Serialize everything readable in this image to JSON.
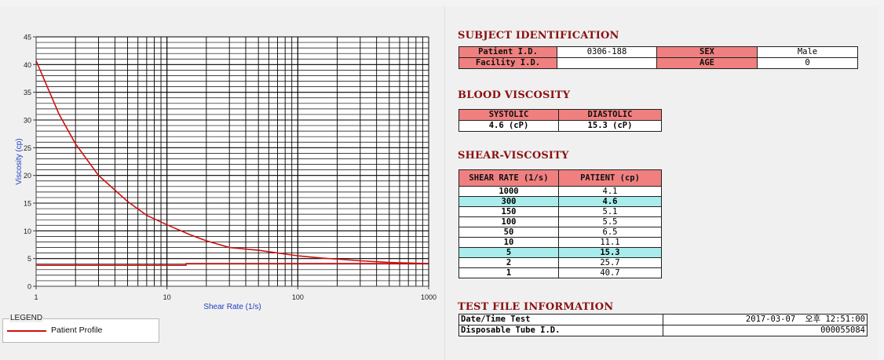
{
  "chart_data": {
    "type": "line",
    "title": "",
    "xlabel": "Shear Rate (1/s)",
    "ylabel": "Viscosity (cp)",
    "xscale": "log",
    "xlim": [
      1,
      1000
    ],
    "ylim": [
      0,
      45
    ],
    "xticks": [
      "1",
      "10",
      "100",
      "1000"
    ],
    "yticks": [
      "0",
      "5",
      "10",
      "15",
      "20",
      "25",
      "30",
      "35",
      "40",
      "45"
    ],
    "grid": true,
    "legend_position": "bottom-left",
    "series": [
      {
        "name": "Patient Profile",
        "color": "#d01010",
        "x": [
          1,
          1.5,
          2,
          3,
          5,
          7,
          10,
          15,
          20,
          30,
          50,
          70,
          100,
          150,
          200,
          300,
          500,
          700,
          1000
        ],
        "y": [
          40.7,
          31.0,
          25.7,
          20.0,
          15.3,
          12.8,
          11.1,
          9.3,
          8.2,
          7.0,
          6.5,
          6.0,
          5.5,
          5.1,
          4.9,
          4.6,
          4.3,
          4.2,
          4.1
        ]
      },
      {
        "name": "",
        "color": "#d01010",
        "x": [
          1,
          14,
          14,
          1000
        ],
        "y": [
          3.8,
          3.8,
          4.1,
          4.1
        ]
      }
    ]
  },
  "legend": {
    "title": "LEGEND",
    "items": [
      "Patient Profile"
    ]
  },
  "subject": {
    "title": "SUBJECT IDENTIFICATION",
    "patient_id_label": "Patient I.D.",
    "patient_id": "0306-188",
    "sex_label": "SEX",
    "sex": "Male",
    "facility_id_label": "Facility I.D.",
    "facility_id": "",
    "age_label": "AGE",
    "age": "0"
  },
  "blood_viscosity": {
    "title": "BLOOD VISCOSITY",
    "systolic_label": "SYSTOLIC",
    "diastolic_label": "DIASTOLIC",
    "systolic": "4.6 (cP)",
    "diastolic": "15.3 (cP)"
  },
  "shear_viscosity": {
    "title": "SHEAR-VISCOSITY",
    "headers": [
      "SHEAR RATE (1/s)",
      "PATIENT (cp)"
    ],
    "rows": [
      {
        "rate": "1000",
        "patient": "4.1"
      },
      {
        "rate": "300",
        "patient": "4.6"
      },
      {
        "rate": "150",
        "patient": "5.1"
      },
      {
        "rate": "100",
        "patient": "5.5"
      },
      {
        "rate": "50",
        "patient": "6.5"
      },
      {
        "rate": "10",
        "patient": "11.1"
      },
      {
        "rate": "5",
        "patient": "15.3"
      },
      {
        "rate": "2",
        "patient": "25.7"
      },
      {
        "rate": "1",
        "patient": "40.7"
      }
    ]
  },
  "test_file": {
    "title": "TEST FILE INFORMATION",
    "datetime_label": "Date/Time Test",
    "datetime": "2017-03-07  오후 12:51:00",
    "tube_label": "Disposable Tube I.D.",
    "tube_id": "000055084"
  },
  "colors": {
    "header_red": "#f08080",
    "title_maroon": "#8b1010",
    "highlight_cyan": "#a8ecec",
    "curve_red": "#d01010"
  }
}
